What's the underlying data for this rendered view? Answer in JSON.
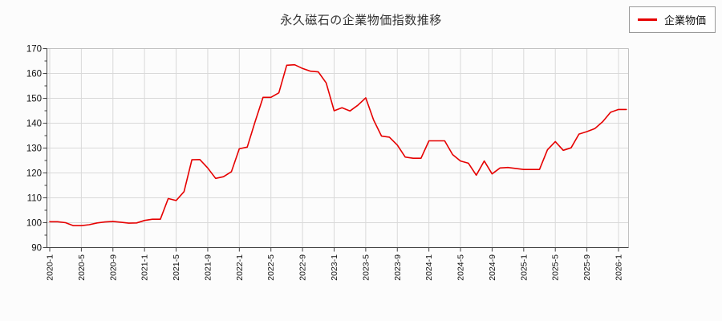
{
  "page": {
    "background": "#fcfcfc"
  },
  "header": {
    "title": "永久磁石の企業物価指数推移"
  },
  "legend": {
    "label": "企業物価",
    "line_color": "#e60000"
  },
  "chart_data": {
    "type": "line",
    "title": "永久磁石の企業物価指数推移",
    "x_start": "2020-1",
    "x_interval": "monthly",
    "x_tick_labels": [
      "2020-1",
      "2020-5",
      "2020-9",
      "2021-1",
      "2021-5",
      "2021-9",
      "2022-1",
      "2022-5",
      "2022-9",
      "2023-1",
      "2023-5",
      "2023-9",
      "2024-1",
      "2024-5",
      "2024-9",
      "2025-1",
      "2025-5",
      "2025-9",
      "2026-1"
    ],
    "x_tick_month_indices": [
      0,
      4,
      8,
      12,
      16,
      20,
      24,
      28,
      32,
      36,
      40,
      44,
      48,
      52,
      56,
      60,
      64,
      68,
      72
    ],
    "y_ticks": [
      90,
      100,
      110,
      120,
      130,
      140,
      150,
      160,
      170
    ],
    "y_minor_ticks": [
      95,
      105,
      115,
      125,
      135,
      145,
      155,
      165
    ],
    "ylim": [
      90,
      170
    ],
    "grid": true,
    "legend_position": "top-right",
    "series": [
      {
        "name": "企業物価",
        "color": "#e60000",
        "values": [
          100.4,
          100.4,
          100.0,
          98.8,
          98.8,
          99.2,
          99.9,
          100.3,
          100.5,
          100.2,
          99.8,
          99.9,
          100.9,
          101.4,
          101.4,
          109.7,
          108.9,
          112.5,
          125.3,
          125.4,
          122.0,
          117.8,
          118.5,
          120.5,
          129.7,
          130.4,
          140.6,
          150.4,
          150.4,
          152.2,
          163.3,
          163.5,
          162.0,
          160.9,
          160.6,
          156.2,
          145.0,
          146.2,
          144.9,
          147.2,
          150.2,
          141.3,
          134.8,
          134.4,
          131.2,
          126.4,
          125.9,
          125.9,
          132.9,
          132.9,
          132.9,
          127.4,
          124.8,
          123.9,
          119.1,
          124.8,
          119.6,
          122.0,
          122.2,
          121.8,
          121.4,
          121.4,
          121.4,
          129.3,
          132.6,
          129.1,
          130.1,
          135.6,
          136.6,
          137.8,
          140.6,
          144.4,
          145.5,
          145.5
        ]
      }
    ]
  }
}
